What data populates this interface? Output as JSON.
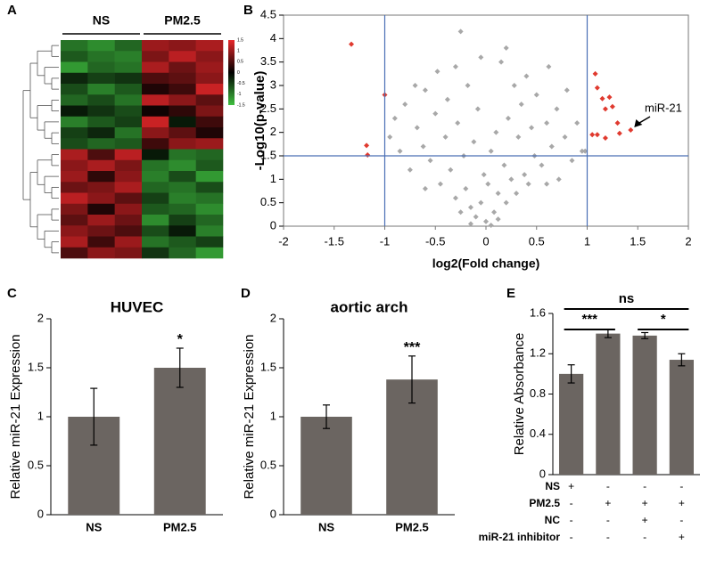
{
  "chart_data": [
    {
      "type": "heatmap",
      "panel": "A",
      "groups": [
        "NS",
        "PM2.5"
      ],
      "values": [
        [
          -0.9,
          -1.1,
          -0.8,
          1.0,
          0.9,
          1.1
        ],
        [
          -0.7,
          -0.9,
          -1.0,
          0.8,
          1.2,
          0.9
        ],
        [
          -1.2,
          -0.8,
          -0.9,
          1.1,
          0.7,
          1.0
        ],
        [
          -0.3,
          -0.5,
          -0.4,
          0.5,
          0.6,
          0.9
        ],
        [
          -0.6,
          -1.0,
          -0.7,
          0.2,
          0.4,
          1.3
        ],
        [
          -0.8,
          -0.6,
          -0.9,
          1.2,
          0.9,
          0.6
        ],
        [
          -0.2,
          -0.4,
          -0.6,
          0.1,
          0.3,
          0.8
        ],
        [
          -1.0,
          -0.7,
          -0.5,
          1.3,
          -0.2,
          0.4
        ],
        [
          -0.5,
          -0.3,
          -0.9,
          0.9,
          0.6,
          0.2
        ],
        [
          -0.6,
          -0.8,
          -0.7,
          0.4,
          0.9,
          1.0
        ],
        [
          1.1,
          0.5,
          1.2,
          -0.2,
          -0.9,
          -0.8
        ],
        [
          0.9,
          1.1,
          0.8,
          -0.9,
          -1.1,
          -0.7
        ],
        [
          1.0,
          0.3,
          0.9,
          -1.0,
          -0.6,
          -1.2
        ],
        [
          0.7,
          0.8,
          1.1,
          -0.8,
          -0.9,
          -0.6
        ],
        [
          1.2,
          0.9,
          0.6,
          -0.5,
          -1.0,
          -0.9
        ],
        [
          0.8,
          0.2,
          0.9,
          -0.7,
          -0.8,
          -1.1
        ],
        [
          0.6,
          1.0,
          0.7,
          -1.1,
          -0.5,
          -0.8
        ],
        [
          0.9,
          0.7,
          0.5,
          -0.6,
          -0.2,
          -1.0
        ],
        [
          1.1,
          0.4,
          1.0,
          -0.9,
          -0.7,
          -0.5
        ],
        [
          0.5,
          0.9,
          0.8,
          -0.4,
          -0.8,
          -1.2
        ]
      ],
      "clim": [
        -1.5,
        1.5
      ],
      "cticks": [
        1.5,
        1,
        0.5,
        0,
        -0.5,
        -1,
        -1.5
      ],
      "colors": [
        "#3fbf3f",
        "#000000",
        "#e8272a"
      ]
    },
    {
      "type": "scatter",
      "panel": "B",
      "xlabel": "log2(Fold change)",
      "ylabel": "-Log10(p-value)",
      "xlim": [
        -2,
        2
      ],
      "xticks": [
        -2,
        -1.5,
        -1,
        -0.5,
        0,
        0.5,
        1,
        1.5,
        2
      ],
      "ylim": [
        0,
        4.5
      ],
      "yticks": [
        0,
        0.5,
        1,
        1.5,
        2,
        2.5,
        3,
        3.5,
        4,
        4.5
      ],
      "vlines": [
        -1,
        1
      ],
      "hlines": [
        1.5
      ],
      "line_color": "#4a6fb5",
      "series": [
        {
          "color": "#a8a8a8",
          "x": [
            -0.95,
            -0.9,
            -0.85,
            -0.8,
            -0.75,
            -0.7,
            -0.68,
            -0.62,
            -0.6,
            -0.55,
            -0.5,
            -0.48,
            -0.45,
            -0.4,
            -0.38,
            -0.35,
            -0.3,
            -0.28,
            -0.25,
            -0.22,
            -0.2,
            -0.18,
            -0.15,
            -0.12,
            -0.1,
            -0.08,
            -0.05,
            -0.02,
            0,
            0.02,
            0.05,
            0.08,
            0.1,
            0.12,
            0.15,
            0.18,
            0.2,
            0.22,
            0.25,
            0.28,
            0.3,
            0.32,
            0.35,
            0.38,
            0.4,
            0.42,
            0.45,
            0.48,
            0.5,
            0.55,
            0.6,
            0.62,
            0.65,
            0.7,
            0.72,
            0.78,
            0.8,
            0.85,
            0.9,
            0.95,
            0.98,
            -0.05,
            0.2,
            -0.3,
            -0.6,
            0.6,
            -0.15,
            0.12,
            0.05,
            -0.25
          ],
          "values": [
            1.9,
            2.3,
            1.6,
            2.6,
            1.2,
            3.0,
            2.1,
            1.7,
            2.9,
            1.4,
            2.4,
            3.3,
            0.9,
            1.9,
            2.7,
            1.2,
            0.6,
            2.2,
            4.15,
            1.5,
            0.8,
            3.0,
            0.4,
            1.8,
            0.2,
            2.5,
            0.5,
            1.1,
            0.1,
            0.9,
            1.6,
            0.3,
            2.0,
            0.7,
            3.5,
            1.3,
            0.5,
            2.3,
            1.0,
            3.0,
            0.7,
            1.9,
            2.6,
            1.1,
            3.2,
            0.9,
            2.1,
            1.5,
            2.8,
            1.3,
            2.2,
            3.4,
            1.7,
            2.5,
            1.0,
            1.9,
            2.9,
            1.4,
            2.2,
            1.6,
            1.6,
            3.6,
            3.8,
            3.4,
            0.8,
            0.9,
            0.05,
            0.15,
            0.02,
            0.3
          ]
        },
        {
          "color": "#e03a2f",
          "x": [
            -1.33,
            -1.18,
            -1.17,
            -1.0,
            1.08,
            1.1,
            1.15,
            1.22,
            1.18,
            1.25,
            1.3,
            1.05,
            1.1,
            1.18,
            1.32,
            1.43
          ],
          "values": [
            3.88,
            1.72,
            1.52,
            2.8,
            3.25,
            2.95,
            2.72,
            2.75,
            2.5,
            2.55,
            2.2,
            1.95,
            1.95,
            1.88,
            1.98,
            2.05
          ]
        }
      ],
      "annotation": "miR-21"
    },
    {
      "type": "bar",
      "panel": "C",
      "title": "HUVEC",
      "ylabel": "Relative miR-21 Expression",
      "categories": [
        "NS",
        "PM2.5"
      ],
      "values": [
        1,
        1.5
      ],
      "errors": [
        0.29,
        0.2
      ],
      "significance": [
        null,
        "*"
      ],
      "color": "#6b6561",
      "ylim": [
        0,
        2
      ],
      "yticks": [
        0,
        0.5,
        1,
        1.5,
        2
      ]
    },
    {
      "type": "bar",
      "panel": "D",
      "title": "aortic arch",
      "ylabel": "Relative miR-21 Expression",
      "categories": [
        "NS",
        "PM2.5"
      ],
      "values": [
        1,
        1.38
      ],
      "errors": [
        0.12,
        0.24
      ],
      "significance": [
        null,
        "***"
      ],
      "color": "#6b6561",
      "ylim": [
        0,
        2
      ],
      "yticks": [
        0,
        0.5,
        1,
        1.5,
        2
      ]
    },
    {
      "type": "bar",
      "panel": "E",
      "ylabel": "Relative Absorbance",
      "categories": [
        null,
        null,
        null,
        null
      ],
      "values": [
        1.0,
        1.4,
        1.38,
        1.14
      ],
      "errors": [
        0.09,
        0.04,
        0.03,
        0.06
      ],
      "color": "#6b6561",
      "ylim": [
        0,
        1.6
      ],
      "yticks": [
        0,
        0.4,
        0.8,
        1.2,
        1.6
      ],
      "brackets": [
        "***",
        "*",
        "ns"
      ],
      "conditions": [
        {
          "name": "NS",
          "signs": [
            "+",
            "-",
            "-",
            "-"
          ]
        },
        {
          "name": "PM2.5",
          "signs": [
            "-",
            "+",
            "+",
            "+"
          ]
        },
        {
          "name": "NC",
          "signs": [
            "-",
            "-",
            "+",
            "-"
          ]
        },
        {
          "name": "miR-21 inhibitor",
          "signs": [
            "-",
            "-",
            "-",
            "+"
          ]
        }
      ]
    }
  ]
}
